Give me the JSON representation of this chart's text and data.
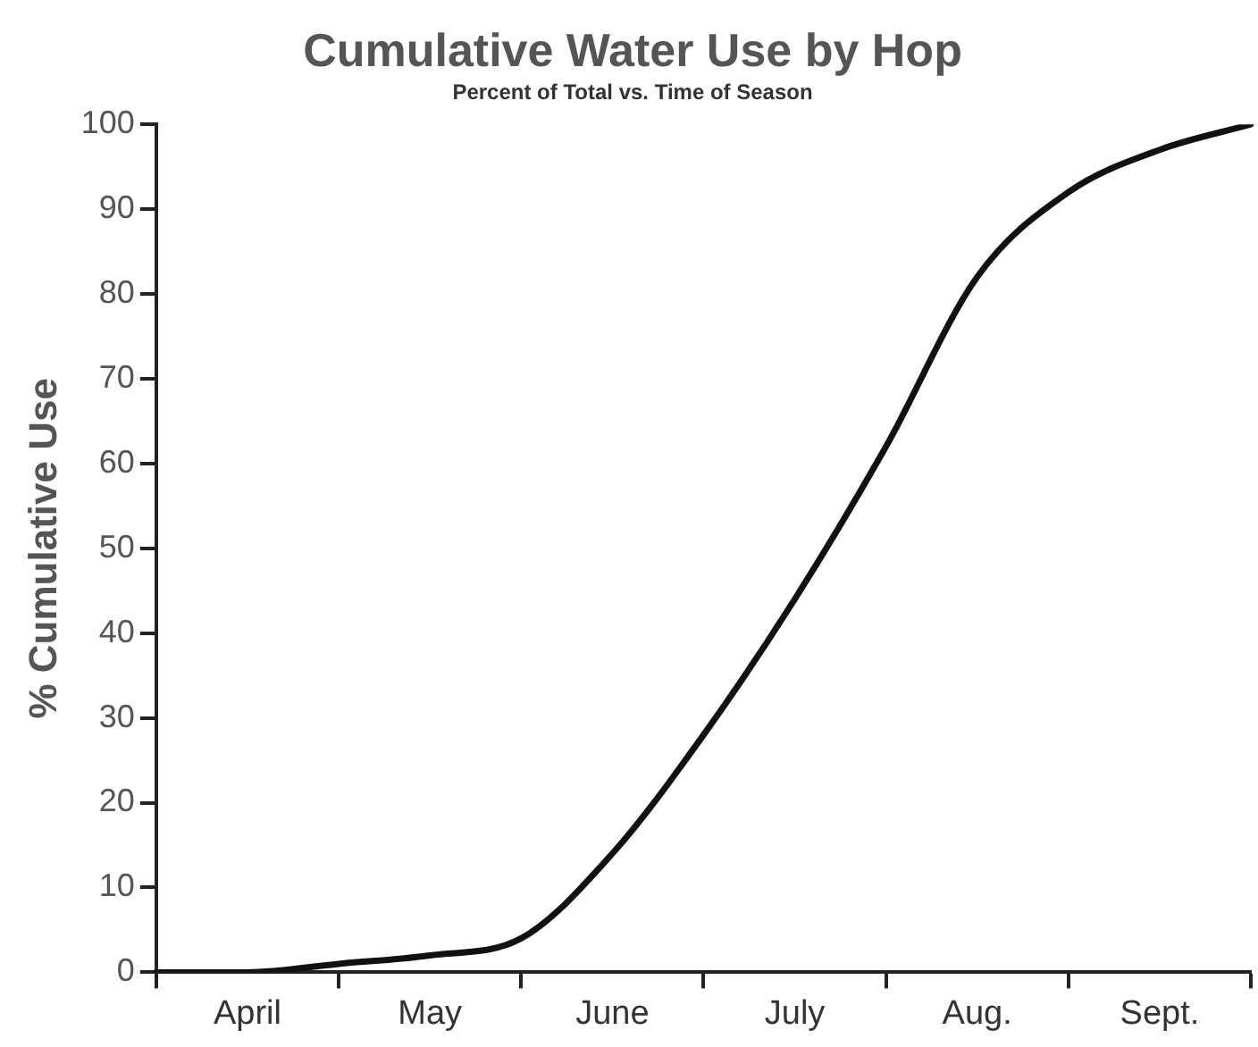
{
  "chart_data": {
    "type": "line",
    "title": "Cumulative Water Use by Hop",
    "subtitle": "Percent of Total vs. Time of Season",
    "ylabel": "% Cumulative Use",
    "categories": [
      null,
      "April",
      null,
      "May",
      null,
      "June",
      null,
      "July",
      null,
      "Aug.",
      null,
      "Sept.",
      null
    ],
    "series": [
      {
        "color": "#111111",
        "values": [
          0,
          0,
          1,
          2,
          4,
          14,
          28,
          44,
          62,
          82,
          92,
          97,
          100
        ]
      }
    ],
    "ylim": [
      0,
      100
    ],
    "yticks": [
      0,
      10,
      20,
      30,
      40,
      50,
      60,
      70,
      80,
      90,
      100
    ],
    "grid": false,
    "legend": false,
    "marker": "none",
    "line_style": "solid"
  }
}
